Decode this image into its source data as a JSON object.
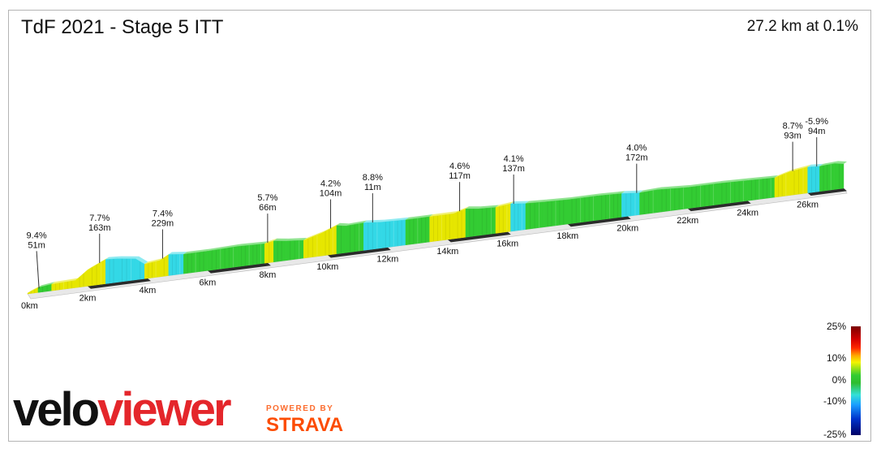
{
  "header": {
    "title": "TdF 2021 - Stage 5 ITT",
    "summary": "27.2 km at 0.1%"
  },
  "colors": {
    "steep_up": "#e6e600",
    "flat": "#33cc33",
    "down": "#33d8e6",
    "side_face": "#c8c8c8",
    "base_dark": "#2b2b2b",
    "base_light": "#e8e8e8"
  },
  "chart_data": {
    "type": "area",
    "title": "TdF 2021 - Stage 5 ITT",
    "distance_km": 27.2,
    "avg_gradient_pct": 0.1,
    "xlim": [
      0,
      27.2
    ],
    "x_ticks": [
      {
        "km": 0,
        "label": "0km"
      },
      {
        "km": 2,
        "label": "2km"
      },
      {
        "km": 4,
        "label": "4km"
      },
      {
        "km": 6,
        "label": "6km"
      },
      {
        "km": 8,
        "label": "8km"
      },
      {
        "km": 10,
        "label": "10km"
      },
      {
        "km": 12,
        "label": "12km"
      },
      {
        "km": 14,
        "label": "14km"
      },
      {
        "km": 16,
        "label": "16km"
      },
      {
        "km": 18,
        "label": "18km"
      },
      {
        "km": 20,
        "label": "20km"
      },
      {
        "km": 22,
        "label": "22km"
      },
      {
        "km": 24,
        "label": "24km"
      },
      {
        "km": 26,
        "label": "26km"
      }
    ],
    "profile": [
      {
        "km": 0.0,
        "h": 1,
        "c": "up"
      },
      {
        "km": 0.35,
        "h": 6,
        "c": "up"
      },
      {
        "km": 0.8,
        "h": 8,
        "c": "flat"
      },
      {
        "km": 1.6,
        "h": 9,
        "c": "up"
      },
      {
        "km": 2.0,
        "h": 20,
        "c": "up"
      },
      {
        "km": 2.6,
        "h": 30,
        "c": "up"
      },
      {
        "km": 3.0,
        "h": 29,
        "c": "down"
      },
      {
        "km": 3.6,
        "h": 26,
        "c": "down"
      },
      {
        "km": 3.9,
        "h": 18,
        "c": "down"
      },
      {
        "km": 4.4,
        "h": 20,
        "c": "up"
      },
      {
        "km": 4.7,
        "h": 26,
        "c": "up"
      },
      {
        "km": 5.2,
        "h": 24,
        "c": "down"
      },
      {
        "km": 6.0,
        "h": 24,
        "c": "flat"
      },
      {
        "km": 7.0,
        "h": 25,
        "c": "flat"
      },
      {
        "km": 7.9,
        "h": 24,
        "c": "flat"
      },
      {
        "km": 8.2,
        "h": 26,
        "c": "up"
      },
      {
        "km": 8.6,
        "h": 24,
        "c": "flat"
      },
      {
        "km": 9.2,
        "h": 22,
        "c": "flat"
      },
      {
        "km": 9.8,
        "h": 28,
        "c": "up"
      },
      {
        "km": 10.3,
        "h": 35,
        "c": "up"
      },
      {
        "km": 10.6,
        "h": 33,
        "c": "flat"
      },
      {
        "km": 11.2,
        "h": 34,
        "c": "flat"
      },
      {
        "km": 11.8,
        "h": 32,
        "c": "down"
      },
      {
        "km": 12.6,
        "h": 31,
        "c": "down"
      },
      {
        "km": 13.4,
        "h": 31,
        "c": "flat"
      },
      {
        "km": 14.2,
        "h": 31,
        "c": "up"
      },
      {
        "km": 14.6,
        "h": 35,
        "c": "up"
      },
      {
        "km": 15.0,
        "h": 33,
        "c": "flat"
      },
      {
        "km": 15.6,
        "h": 32,
        "c": "flat"
      },
      {
        "km": 16.1,
        "h": 34,
        "c": "up"
      },
      {
        "km": 16.6,
        "h": 32,
        "c": "down"
      },
      {
        "km": 17.2,
        "h": 31,
        "c": "flat"
      },
      {
        "km": 18.0,
        "h": 30,
        "c": "flat"
      },
      {
        "km": 19.0,
        "h": 30,
        "c": "flat"
      },
      {
        "km": 19.8,
        "h": 29,
        "c": "flat"
      },
      {
        "km": 20.4,
        "h": 27,
        "c": "down"
      },
      {
        "km": 21.0,
        "h": 28,
        "c": "flat"
      },
      {
        "km": 22.0,
        "h": 26,
        "c": "flat"
      },
      {
        "km": 23.0,
        "h": 26,
        "c": "flat"
      },
      {
        "km": 24.0,
        "h": 25,
        "c": "flat"
      },
      {
        "km": 24.9,
        "h": 24,
        "c": "flat"
      },
      {
        "km": 25.4,
        "h": 29,
        "c": "up"
      },
      {
        "km": 26.0,
        "h": 32,
        "c": "up"
      },
      {
        "km": 26.4,
        "h": 31,
        "c": "down"
      },
      {
        "km": 26.9,
        "h": 32,
        "c": "flat"
      },
      {
        "km": 27.2,
        "h": 30,
        "c": "flat"
      }
    ],
    "annotations": [
      {
        "km": 0.3,
        "grade": "9.4%",
        "length": "51m",
        "level": 2
      },
      {
        "km": 2.4,
        "grade": "7.7%",
        "length": "163m",
        "level": 1
      },
      {
        "km": 4.5,
        "grade": "7.4%",
        "length": "229m",
        "level": 1
      },
      {
        "km": 8.0,
        "grade": "5.7%",
        "length": "66m",
        "level": 1
      },
      {
        "km": 10.1,
        "grade": "4.2%",
        "length": "104m",
        "level": 1
      },
      {
        "km": 11.5,
        "grade": "8.8%",
        "length": "11m",
        "level": 1
      },
      {
        "km": 14.4,
        "grade": "4.6%",
        "length": "117m",
        "level": 1
      },
      {
        "km": 16.2,
        "grade": "4.1%",
        "length": "137m",
        "level": 1
      },
      {
        "km": 20.3,
        "grade": "4.0%",
        "length": "172m",
        "level": 1
      },
      {
        "km": 25.5,
        "grade": "8.7%",
        "length": "93m",
        "level": 1
      },
      {
        "km": 26.3,
        "grade": "-5.9%",
        "length": "94m",
        "level": 1
      }
    ],
    "legend": {
      "type": "gradient-scale",
      "placement": "bottom-right",
      "labels": [
        "25%",
        "10%",
        "0%",
        "-10%",
        "-25%"
      ]
    }
  },
  "branding": {
    "logo_part1": "velo",
    "logo_part2": "viewer",
    "powered_by": "POWERED BY",
    "strava": "STRAVA"
  }
}
